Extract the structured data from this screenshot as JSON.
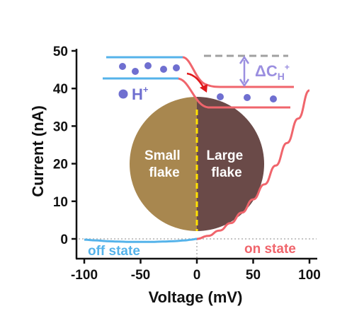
{
  "chart_data": {
    "type": "line",
    "title": "",
    "xlabel": "Voltage (mV)",
    "ylabel": "Current (nA)",
    "xlim": [
      -105,
      105
    ],
    "ylim": [
      -5,
      50
    ],
    "xticks": [
      -100,
      -50,
      0,
      50,
      100
    ],
    "yticks": [
      0,
      10,
      20,
      30,
      40,
      50
    ],
    "grid": false,
    "series": [
      {
        "name": "off state",
        "color": "#55b3ea",
        "x": [
          -100,
          -90,
          -80,
          -70,
          -60,
          -50,
          -40,
          -30,
          -20,
          -10,
          -5,
          0
        ],
        "y": [
          -0.2,
          -0.4,
          -0.6,
          -0.7,
          -0.8,
          -0.8,
          -0.8,
          -0.7,
          -0.6,
          -0.4,
          -0.2,
          0
        ]
      },
      {
        "name": "on state",
        "color": "#f0656c",
        "x": [
          0,
          10,
          20,
          30,
          40,
          50,
          60,
          70,
          80,
          90,
          100
        ],
        "y": [
          0,
          0.8,
          2.2,
          4.2,
          7,
          10.5,
          14.5,
          19.5,
          25.5,
          32,
          39.5
        ]
      }
    ],
    "reference_lines": {
      "x": 0,
      "y": 0,
      "style": "dotted",
      "color": "#c4c4c4"
    },
    "inset": {
      "flake_left": "Small\nflake",
      "flake_right": "Large\nflake",
      "flake_left_color": "#a8874f",
      "flake_right_color": "#6a4a48",
      "divider_color": "#ffe100",
      "ion_label": "H",
      "ion_superscript": "+",
      "delta_label": "ΔC",
      "delta_subscript": "H",
      "delta_superscript": "+",
      "ion_color": "#6f6fd0",
      "arrow_color": "#e0181b",
      "line_color": "#f0656c",
      "line_color_alt": "#55b3ea",
      "dashed_color": "#a0a0a0",
      "delta_color": "#9b8fe0"
    }
  }
}
